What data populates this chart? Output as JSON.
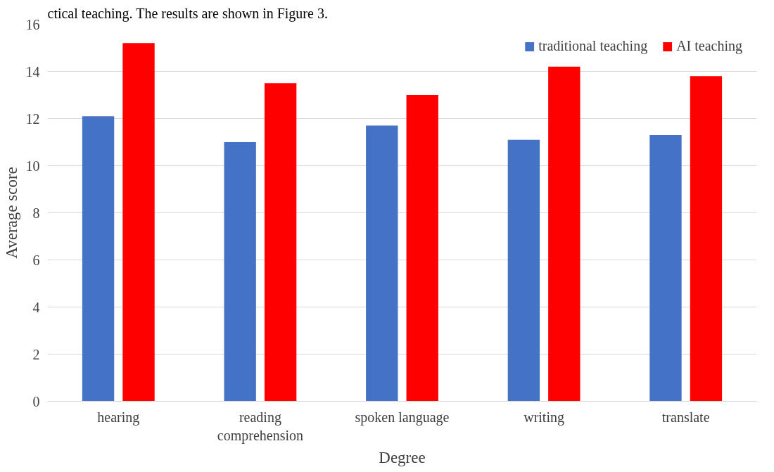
{
  "chart_data": {
    "type": "bar",
    "xlabel": "Degree",
    "ylabel": "Average score",
    "annotations": [
      "ctical teaching. The results are shown in Figure 3."
    ],
    "categories": [
      "hearing",
      "reading\ncomprehension",
      "spoken language",
      "writing",
      "translate"
    ],
    "series": [
      {
        "name": "traditional teaching",
        "color": "#4472c4",
        "values": [
          12.1,
          11.0,
          11.7,
          11.1,
          11.3
        ]
      },
      {
        "name": "AI teaching",
        "color": "#ff0000",
        "values": [
          15.2,
          13.5,
          13.0,
          14.2,
          13.8
        ]
      }
    ],
    "ylim": [
      0,
      16
    ],
    "yticks": [
      0,
      2,
      4,
      6,
      8,
      10,
      12,
      14,
      16
    ],
    "grid": "y",
    "legend": "top right"
  }
}
